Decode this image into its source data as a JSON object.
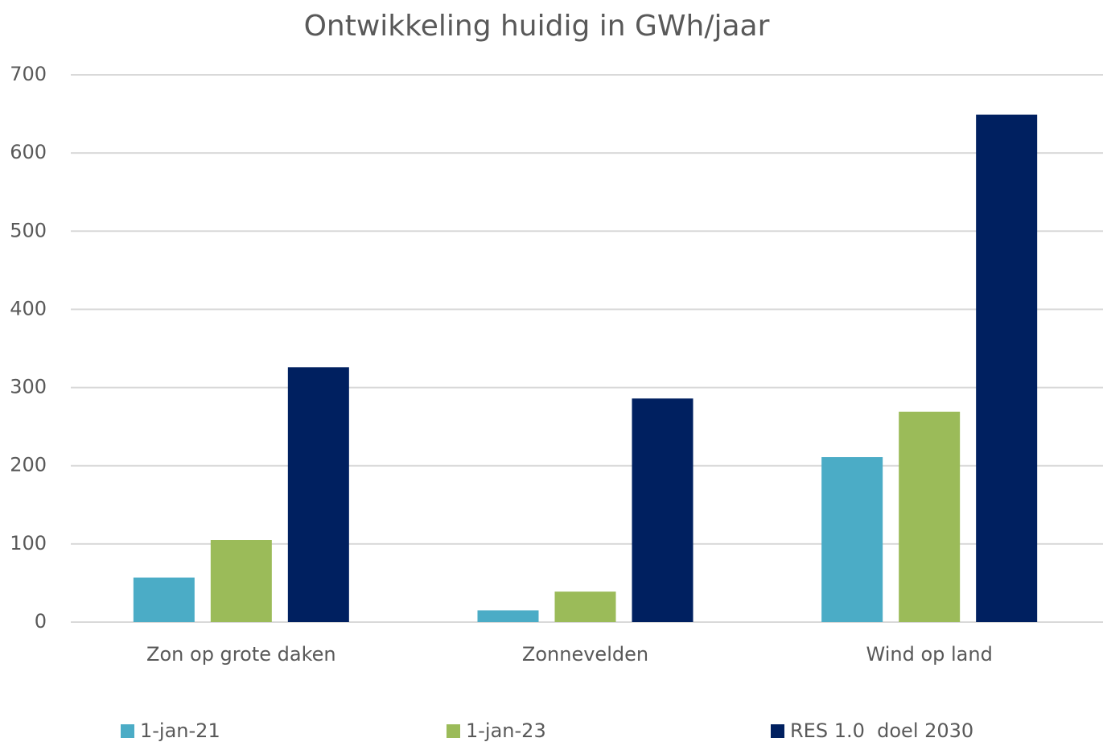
{
  "chart_data": {
    "type": "bar",
    "title": "Ontwikkeling huidig in GWh/jaar",
    "categories": [
      "Zon op grote daken",
      "Zonnevelden",
      "Wind op land"
    ],
    "series": [
      {
        "name": "1-jan-21",
        "color": "#4bacc6",
        "values": [
          57,
          15,
          211
        ]
      },
      {
        "name": "1-jan-23",
        "color": "#9bbb59",
        "values": [
          105,
          39,
          269
        ]
      },
      {
        "name": "RES 1.0  doel 2030",
        "color": "#002060",
        "values": [
          326,
          286,
          649
        ]
      }
    ],
    "ylim": [
      0,
      700
    ],
    "yticks": [
      0,
      100,
      200,
      300,
      400,
      500,
      600,
      700
    ],
    "grid": true,
    "legend": "bottom"
  }
}
